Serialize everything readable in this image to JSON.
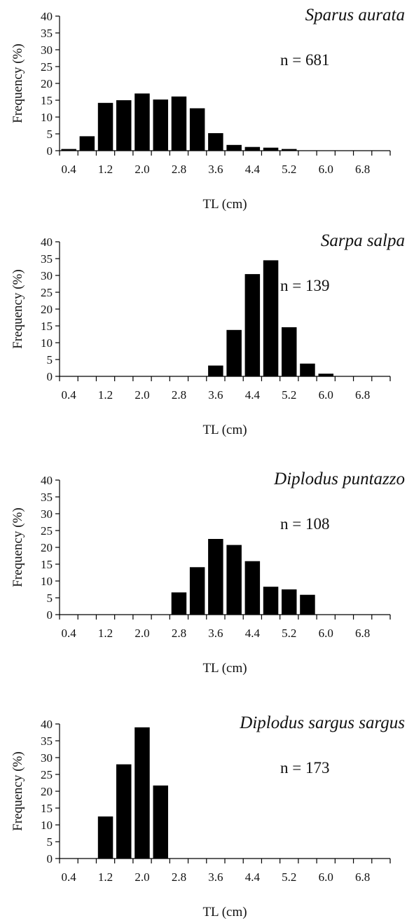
{
  "chart_data": [
    {
      "type": "bar",
      "species": "Sparus aurata",
      "n_label": "n = 681",
      "xlabel": "TL (cm)",
      "ylabel": "Frequency (%)",
      "ylim": [
        0,
        40
      ],
      "yticks": [
        0,
        5,
        10,
        15,
        20,
        25,
        30,
        35,
        40
      ],
      "xtick_labels": [
        "0.4",
        "1.2",
        "2.0",
        "2.8",
        "3.6",
        "4.4",
        "5.2",
        "6.0",
        "6.8"
      ],
      "categories": [
        0.4,
        0.8,
        1.2,
        1.6,
        2.0,
        2.4,
        2.8,
        3.2,
        3.6,
        4.0,
        4.4,
        4.8,
        5.2,
        5.6,
        6.0,
        6.4,
        6.8,
        7.2
      ],
      "values": [
        0.5,
        4.3,
        14.2,
        15.0,
        17.0,
        15.2,
        16.1,
        12.6,
        5.2,
        1.7,
        1.1,
        0.9,
        0.5,
        0,
        0,
        0,
        0,
        0
      ]
    },
    {
      "type": "bar",
      "species": "Sarpa salpa",
      "n_label": "n = 139",
      "xlabel": "TL (cm)",
      "ylabel": "Frequency (%)",
      "ylim": [
        0,
        40
      ],
      "yticks": [
        0,
        5,
        10,
        15,
        20,
        25,
        30,
        35,
        40
      ],
      "xtick_labels": [
        "0.4",
        "1.2",
        "2.0",
        "2.8",
        "3.6",
        "4.4",
        "5.2",
        "6.0",
        "6.8"
      ],
      "categories": [
        0.4,
        0.8,
        1.2,
        1.6,
        2.0,
        2.4,
        2.8,
        3.2,
        3.6,
        4.0,
        4.4,
        4.8,
        5.2,
        5.6,
        6.0,
        6.4,
        6.8,
        7.2
      ],
      "values": [
        0,
        0,
        0,
        0,
        0,
        0,
        0,
        0,
        3.2,
        13.8,
        30.4,
        34.5,
        14.6,
        3.8,
        0.8,
        0,
        0,
        0
      ]
    },
    {
      "type": "bar",
      "species": "Diplodus puntazzo",
      "n_label": "n = 108",
      "xlabel": "TL (cm)",
      "ylabel": "Frequency (%)",
      "ylim": [
        0,
        40
      ],
      "yticks": [
        0,
        5,
        10,
        15,
        20,
        25,
        30,
        35,
        40
      ],
      "xtick_labels": [
        "0.4",
        "1.2",
        "2.0",
        "2.8",
        "3.6",
        "4.4",
        "5.2",
        "6.0",
        "6.8"
      ],
      "categories": [
        0.4,
        0.8,
        1.2,
        1.6,
        2.0,
        2.4,
        2.8,
        3.2,
        3.6,
        4.0,
        4.4,
        4.8,
        5.2,
        5.6,
        6.0,
        6.4,
        6.8,
        7.2
      ],
      "values": [
        0,
        0,
        0,
        0,
        0,
        0,
        6.6,
        14.1,
        22.5,
        20.7,
        15.9,
        8.3,
        7.5,
        5.9,
        0,
        0,
        0,
        0
      ]
    },
    {
      "type": "bar",
      "species": "Diplodus sargus sargus",
      "n_label": "n = 173",
      "xlabel": "TL (cm)",
      "ylabel": "Frequency (%)",
      "ylim": [
        0,
        40
      ],
      "yticks": [
        0,
        5,
        10,
        15,
        20,
        25,
        30,
        35,
        40
      ],
      "xtick_labels": [
        "0.4",
        "1.2",
        "2.0",
        "2.8",
        "3.6",
        "4.4",
        "5.2",
        "6.0",
        "6.8"
      ],
      "categories": [
        0.4,
        0.8,
        1.2,
        1.6,
        2.0,
        2.4,
        2.8,
        3.2,
        3.6,
        4.0,
        4.4,
        4.8,
        5.2,
        5.6,
        6.0,
        6.4,
        6.8,
        7.2
      ],
      "values": [
        0,
        0,
        12.5,
        28.0,
        39.0,
        21.7,
        0,
        0,
        0,
        0,
        0,
        0,
        0,
        0,
        0,
        0,
        0,
        0
      ]
    }
  ]
}
